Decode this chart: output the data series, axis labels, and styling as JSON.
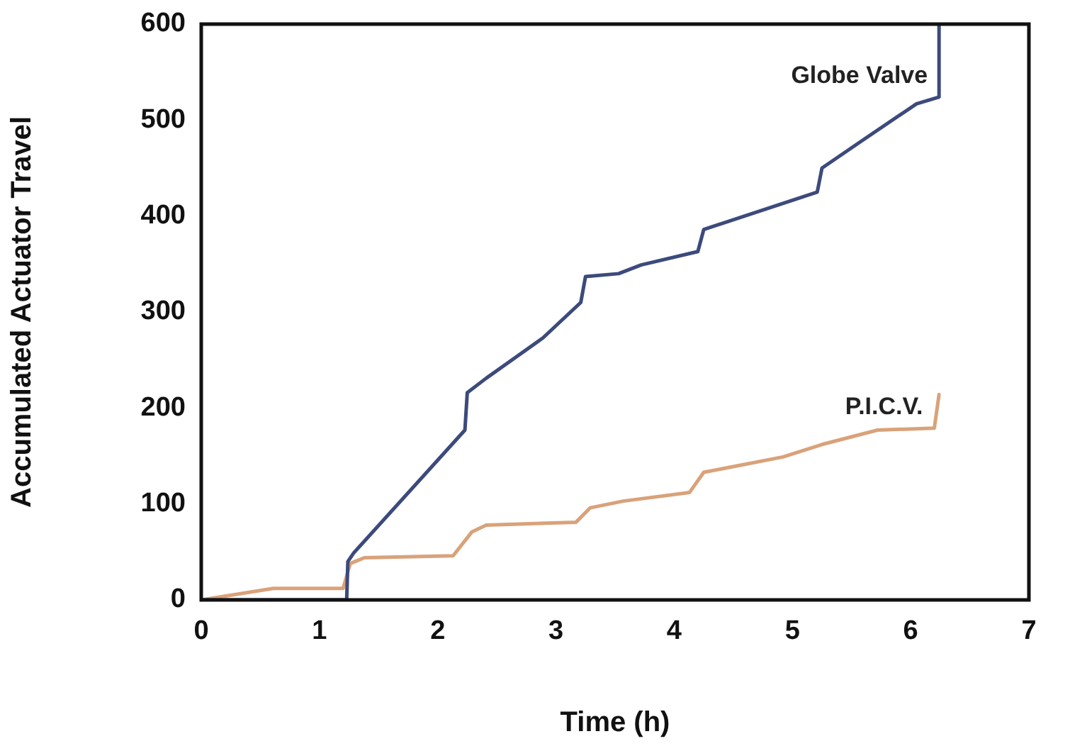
{
  "chart_data": {
    "type": "line",
    "xlabel": "Time (h)",
    "ylabel": "Accumulated Actuator Travel",
    "xlim": [
      0,
      7
    ],
    "xticks": [
      0,
      1,
      2,
      3,
      4,
      5,
      6,
      7
    ],
    "ylim": [
      0,
      600
    ],
    "yticks": [
      0,
      100,
      200,
      300,
      400,
      500,
      600
    ],
    "grid": false,
    "legend": false,
    "marker": "none",
    "line_style": "solid",
    "series": [
      {
        "name": "Globe Valve",
        "color": "#3c4a7c",
        "x": [
          0,
          1.23,
          1.24,
          1.29,
          2.23,
          2.25,
          2.41,
          2.89,
          3.21,
          3.25,
          3.53,
          3.72,
          4.2,
          4.25,
          5.21,
          5.25,
          5.57,
          6.05,
          6.24,
          6.24
        ],
        "values": [
          0,
          0,
          40,
          49,
          177,
          216,
          231,
          273,
          310,
          337,
          340,
          349,
          363,
          386,
          425,
          450,
          477,
          517,
          524,
          600
        ]
      },
      {
        "name": "P.I.C.V.",
        "color": "#d9a27a",
        "x": [
          0,
          0.61,
          1.2,
          1.26,
          1.38,
          2.13,
          2.29,
          2.41,
          3.17,
          3.29,
          3.57,
          4.13,
          4.25,
          4.92,
          5.25,
          5.72,
          6.2,
          6.24
        ],
        "values": [
          0,
          12,
          12,
          38,
          44,
          46,
          71,
          78,
          81,
          96,
          103,
          112,
          133,
          149,
          162,
          177,
          179,
          214
        ]
      }
    ]
  }
}
